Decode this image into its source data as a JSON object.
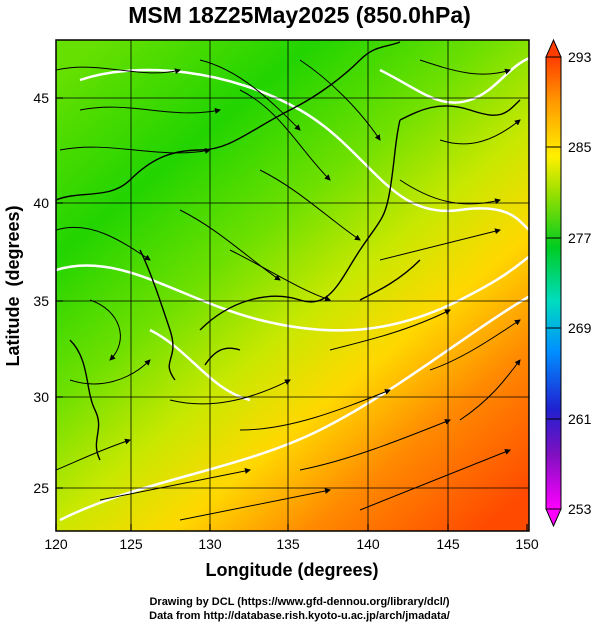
{
  "title": "MSM 18Z25May2025 (850.0hPa)",
  "xaxis": {
    "label": "Longitude (degrees)",
    "ticks": [
      "120",
      "125",
      "130",
      "135",
      "140",
      "145",
      "150"
    ],
    "range": [
      120,
      150
    ]
  },
  "yaxis": {
    "label": "Latitude  (degrees)",
    "ticks": [
      "25",
      "30",
      "35",
      "40",
      "45"
    ],
    "range": [
      22.4,
      47.6
    ]
  },
  "colorbar": {
    "ticks": [
      "293",
      "285",
      "277",
      "269",
      "261",
      "253"
    ],
    "range": [
      253,
      293
    ],
    "colors": [
      "#ff00ff",
      "#2020d0",
      "#00c8ff",
      "#00dca0",
      "#00cc20",
      "#9be000",
      "#fff000",
      "#ff9a00",
      "#ff3c00"
    ]
  },
  "credits": {
    "line1": "Drawing by DCL (https://www.gfd-dennou.org/library/dcl/)",
    "line2": "Data from http://database.rish.kyoto-u.ac.jp/arch/jmadata/"
  }
}
